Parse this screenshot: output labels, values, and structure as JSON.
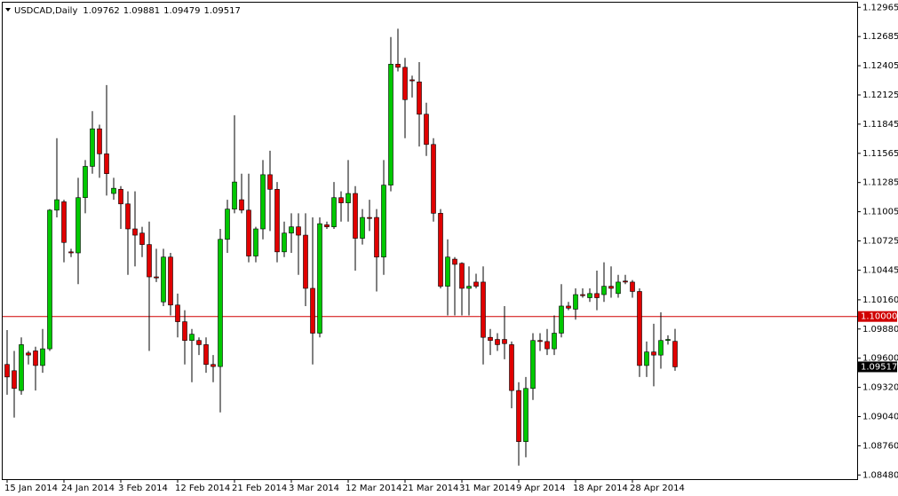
{
  "chart_data": {
    "type": "candlestick",
    "title": "USDCAD,Daily",
    "up_color": "#00c800",
    "down_color": "#e00000",
    "categories": [
      "15 Jan 2014",
      null,
      null,
      null,
      null,
      null,
      null,
      null,
      "24 Jan 2014",
      null,
      null,
      null,
      null,
      null,
      null,
      null,
      "3 Feb 2014",
      null,
      null,
      null,
      null,
      null,
      null,
      null,
      "12 Feb 2014",
      null,
      null,
      null,
      null,
      null,
      null,
      null,
      "21 Feb 2014",
      null,
      null,
      null,
      null,
      null,
      null,
      null,
      "3 Mar 2014",
      null,
      null,
      null,
      null,
      null,
      null,
      null,
      "12 Mar 2014",
      null,
      null,
      null,
      null,
      null,
      null,
      null,
      "21 Mar 2014",
      null,
      null,
      null,
      null,
      null,
      null,
      null,
      "31 Mar 2014",
      null,
      null,
      null,
      null,
      null,
      null,
      null,
      "9 Apr 2014",
      null,
      null,
      null,
      null,
      null,
      null,
      null,
      "18 Apr 2014",
      null,
      null,
      null,
      null,
      null,
      null,
      null,
      "28 Apr 2014",
      null,
      null,
      null,
      null,
      null,
      null
    ],
    "open": [
      1.0954,
      1.0948,
      1.0929,
      1.0965,
      1.0967,
      1.0953,
      1.0969,
      1.1102,
      1.111,
      1.1062,
      1.1061,
      1.1114,
      1.1144,
      1.118,
      1.1156,
      1.1118,
      1.1122,
      1.1108,
      1.1084,
      1.108,
      1.1069,
      1.1038,
      1.1014,
      1.1057,
      1.1011,
      1.0995,
      1.0977,
      1.0977,
      1.0973,
      1.0954,
      1.0952,
      1.1074,
      1.1103,
      1.1112,
      1.1102,
      1.1058,
      1.1084,
      1.1136,
      1.1122,
      1.1062,
      1.108,
      1.1086,
      1.1078,
      1.1027,
      1.0984,
      1.1088,
      1.1086,
      1.1114,
      1.1109,
      1.1118,
      1.1075,
      1.1095,
      1.1095,
      1.1057,
      1.1126,
      1.1242,
      1.1239,
      1.1227,
      1.1225,
      1.1194,
      1.1165,
      1.1099,
      1.1029,
      1.1055,
      1.1051,
      1.1027,
      1.1033,
      1.1033,
      1.098,
      1.0978,
      1.0978,
      1.0973,
      1.0929,
      1.088,
      1.0931,
      1.0977,
      1.0976,
      1.0969,
      1.0984,
      1.101,
      1.1007,
      1.1021,
      1.1018,
      1.1022,
      1.1021,
      1.1029,
      1.1022,
      1.1034,
      1.1033,
      1.1024,
      1.0953,
      1.0966,
      1.0963,
      1.0977,
      1.09762
    ],
    "high": [
      1.0987,
      1.0967,
      1.098,
      1.0967,
      1.0971,
      1.0988,
      1.1103,
      1.1171,
      1.1112,
      1.1065,
      1.1133,
      1.115,
      1.1197,
      1.1184,
      1.1222,
      1.1133,
      1.1125,
      1.112,
      1.112,
      1.1086,
      1.1091,
      1.1065,
      1.1065,
      1.1061,
      1.1022,
      1.1006,
      1.0988,
      1.098,
      1.098,
      1.0963,
      1.1084,
      1.1112,
      1.1193,
      1.1137,
      1.1137,
      1.1086,
      1.115,
      1.1159,
      1.1129,
      1.1091,
      1.1099,
      1.1099,
      1.1099,
      1.1095,
      1.1095,
      1.1091,
      1.1129,
      1.112,
      1.115,
      1.1125,
      1.1103,
      1.1112,
      1.1103,
      1.115,
      1.1268,
      1.1276,
      1.1248,
      1.1231,
      1.1244,
      1.1205,
      1.1171,
      1.1103,
      1.1074,
      1.1057,
      1.1052,
      1.1048,
      1.1041,
      1.1048,
      1.0988,
      1.0984,
      1.101,
      1.0976,
      1.0937,
      1.0942,
      1.0984,
      1.0984,
      1.0988,
      1.1001,
      1.1031,
      1.1014,
      1.1027,
      1.1027,
      1.1027,
      1.1044,
      1.1052,
      1.1048,
      1.104,
      1.104,
      1.1035,
      1.1027,
      1.0976,
      1.0993,
      1.1004,
      1.0982,
      1.09881
    ],
    "low": [
      1.0925,
      1.0903,
      1.0925,
      1.0954,
      1.0929,
      1.0946,
      1.0967,
      1.1095,
      1.1052,
      1.1057,
      1.1031,
      1.1099,
      1.1137,
      1.1133,
      1.1116,
      1.1112,
      1.1084,
      1.104,
      1.1048,
      1.1057,
      1.0967,
      1.1033,
      1.101,
      1.1001,
      1.098,
      1.0954,
      1.0937,
      1.0963,
      1.0946,
      1.0937,
      1.0908,
      1.1061,
      1.1099,
      1.1099,
      1.1052,
      1.1052,
      1.1074,
      1.1082,
      1.1052,
      1.1057,
      1.1061,
      1.104,
      1.101,
      1.0954,
      1.098,
      1.1084,
      1.1084,
      1.1091,
      1.1091,
      1.1044,
      1.1069,
      1.1082,
      1.1024,
      1.104,
      1.112,
      1.1235,
      1.1171,
      1.121,
      1.1163,
      1.1154,
      1.1091,
      1.1027,
      1.1001,
      1.1001,
      1.1001,
      1.1001,
      1.1027,
      1.0954,
      1.0963,
      1.0967,
      1.0959,
      1.0912,
      1.0857,
      1.0865,
      1.092,
      1.0967,
      1.0963,
      1.0963,
      1.098,
      1.1006,
      1.0997,
      1.1018,
      1.1014,
      1.1006,
      1.1014,
      1.1018,
      1.1018,
      1.1031,
      1.1018,
      1.0942,
      1.0942,
      1.0933,
      1.095,
      1.0973,
      1.09479
    ],
    "close": [
      1.0942,
      1.0931,
      1.0973,
      1.0963,
      1.0953,
      1.0969,
      1.1102,
      1.1112,
      1.1071,
      1.1061,
      1.1114,
      1.1144,
      1.118,
      1.1156,
      1.1137,
      1.1123,
      1.1108,
      1.1084,
      1.1078,
      1.1069,
      1.1038,
      1.1037,
      1.1057,
      1.1011,
      1.0995,
      1.0977,
      1.0983,
      1.0973,
      1.0954,
      1.0952,
      1.1074,
      1.1103,
      1.1129,
      1.1102,
      1.1058,
      1.1084,
      1.1136,
      1.1122,
      1.1062,
      1.108,
      1.1086,
      1.1078,
      1.1027,
      1.0984,
      1.1089,
      1.1086,
      1.1114,
      1.1109,
      1.1118,
      1.1075,
      1.1095,
      1.1094,
      1.1057,
      1.1126,
      1.1242,
      1.1239,
      1.1208,
      1.1226,
      1.1194,
      1.1165,
      1.1099,
      1.1029,
      1.1057,
      1.105,
      1.1027,
      1.1029,
      1.1029,
      1.098,
      1.0977,
      1.0973,
      1.0974,
      1.0929,
      1.088,
      1.0931,
      1.0977,
      1.0976,
      1.0969,
      1.0984,
      1.101,
      1.1008,
      1.1021,
      1.102,
      1.1022,
      1.1018,
      1.1029,
      1.1027,
      1.1033,
      1.1033,
      1.1024,
      1.0953,
      1.0966,
      1.0963,
      1.0977,
      1.0978,
      1.09517
    ],
    "level": {
      "value": 1.1,
      "label": "1.10000",
      "color": "#d00000"
    },
    "ylim": [
      1.0844,
      1.1301
    ],
    "yticks": [
      1.12965,
      1.12685,
      1.12405,
      1.12125,
      1.11845,
      1.11565,
      1.11285,
      1.11005,
      1.10725,
      1.10445,
      {
        "value": 1.1016,
        "label": "1.10160"
      },
      {
        "value": 1.0988,
        "label": "1.09880"
      },
      {
        "value": 1.096,
        "label": "1.09600"
      },
      {
        "value": 1.0932,
        "label": "1.09320"
      },
      {
        "value": 1.0904,
        "label": "1.09040"
      },
      {
        "value": 1.0876,
        "label": "1.08760"
      },
      {
        "value": 1.0848,
        "label": "1.08480"
      }
    ],
    "grid": false
  }
}
